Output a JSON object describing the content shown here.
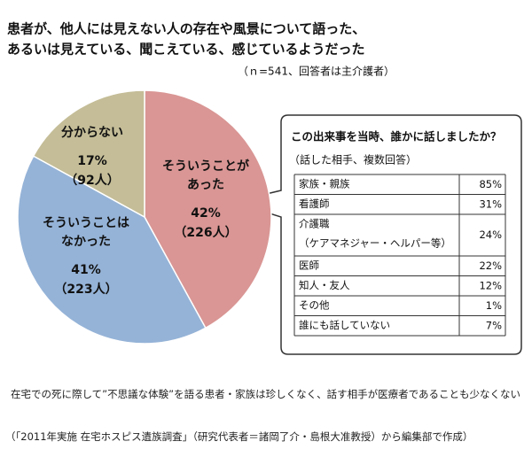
{
  "chart_data": {
    "type": "pie",
    "title": [
      "患者が、他人には見えない人の存在や風景について語った、",
      "あるいは見えている、聞こえている、感じているようだった"
    ],
    "subtitle": "（ｎ=541、回答者は主介護者）",
    "categories": [
      [
        "そういうことが",
        "あった"
      ],
      [
        "そういうことは",
        "なかった"
      ],
      [
        "分からない"
      ]
    ],
    "values": [
      42,
      41,
      17
    ],
    "value_labels": [
      "42%",
      "41%",
      "17%"
    ],
    "count_labels": [
      "（226人）",
      "（223人）",
      "（92人）"
    ],
    "colors": [
      "#d99694",
      "#95b3d7",
      "#c4bd97"
    ],
    "callout": {
      "title": "この出来事を当時、誰かに話しましたか？",
      "subtitle": "（話した相手、複数回答）",
      "rows": [
        {
          "label": [
            "家族・親族"
          ],
          "value": "85%"
        },
        {
          "label": [
            "看護師"
          ],
          "value": "31%"
        },
        {
          "label": [
            "介護職",
            "（ケアマネジャー・ヘルパー等）"
          ],
          "value": "24%"
        },
        {
          "label": [
            "医師"
          ],
          "value": "22%"
        },
        {
          "label": [
            "知人・友人"
          ],
          "value": "12%"
        },
        {
          "label": [
            "その他"
          ],
          "value": "1%"
        },
        {
          "label": [
            "誰にも話していない"
          ],
          "value": "7%"
        }
      ]
    },
    "caption": "在宅での死に際して”不思議な体験”を語る患者・家族は珍しくなく、話す相手が医療者であることも少なくない",
    "source": "（「2011年実施 在宅ホスピス遺族調査」（研究代表者＝諸岡了介・島根大准教授）から編集部で作成）"
  }
}
